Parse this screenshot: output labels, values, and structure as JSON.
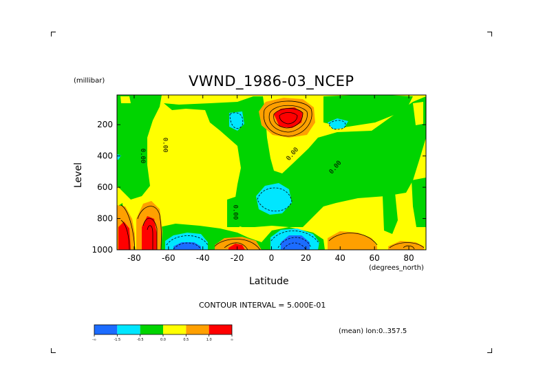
{
  "chart_data": {
    "type": "contour",
    "title": "VWND_1986-03_NCEP",
    "xlabel": "Latitude",
    "ylabel": "Level",
    "x_units": "(degrees_north)",
    "y_units": "(millibar)",
    "xlim": [
      -90,
      90
    ],
    "ylim": [
      1000,
      10
    ],
    "x_ticks": [
      "-80",
      "-60",
      "-40",
      "-20",
      "0",
      "20",
      "40",
      "60",
      "80"
    ],
    "x_tick_values": [
      -80,
      -60,
      -40,
      -20,
      0,
      20,
      40,
      60,
      80
    ],
    "y_ticks": [
      "200",
      "400",
      "600",
      "800",
      "1000"
    ],
    "y_tick_values": [
      200,
      400,
      600,
      800,
      1000
    ],
    "contour_interval_text": "CONTOUR INTERVAL = 5.000E-01",
    "averaging_text": "(mean) lon:0..357.5",
    "contour_labels": [
      {
        "text": "0.00",
        "lat": -76,
        "lev": 400
      },
      {
        "text": "0.00",
        "lat": -63,
        "lev": 330
      },
      {
        "text": "0.00",
        "lat": 13,
        "lev": 395
      },
      {
        "text": "0.00",
        "lat": 38,
        "lev": 480
      },
      {
        "text": "0.00",
        "lat": -22,
        "lev": 760
      }
    ],
    "colorbar": {
      "colors": [
        "#1c6cff",
        "#00e6ff",
        "#00d400",
        "#ffff00",
        "#ffa000",
        "#ff0000"
      ],
      "labels": [
        "-∞",
        "-1.5",
        "-0.5",
        "0.0",
        "0.5",
        "1.0",
        "∞"
      ]
    }
  }
}
